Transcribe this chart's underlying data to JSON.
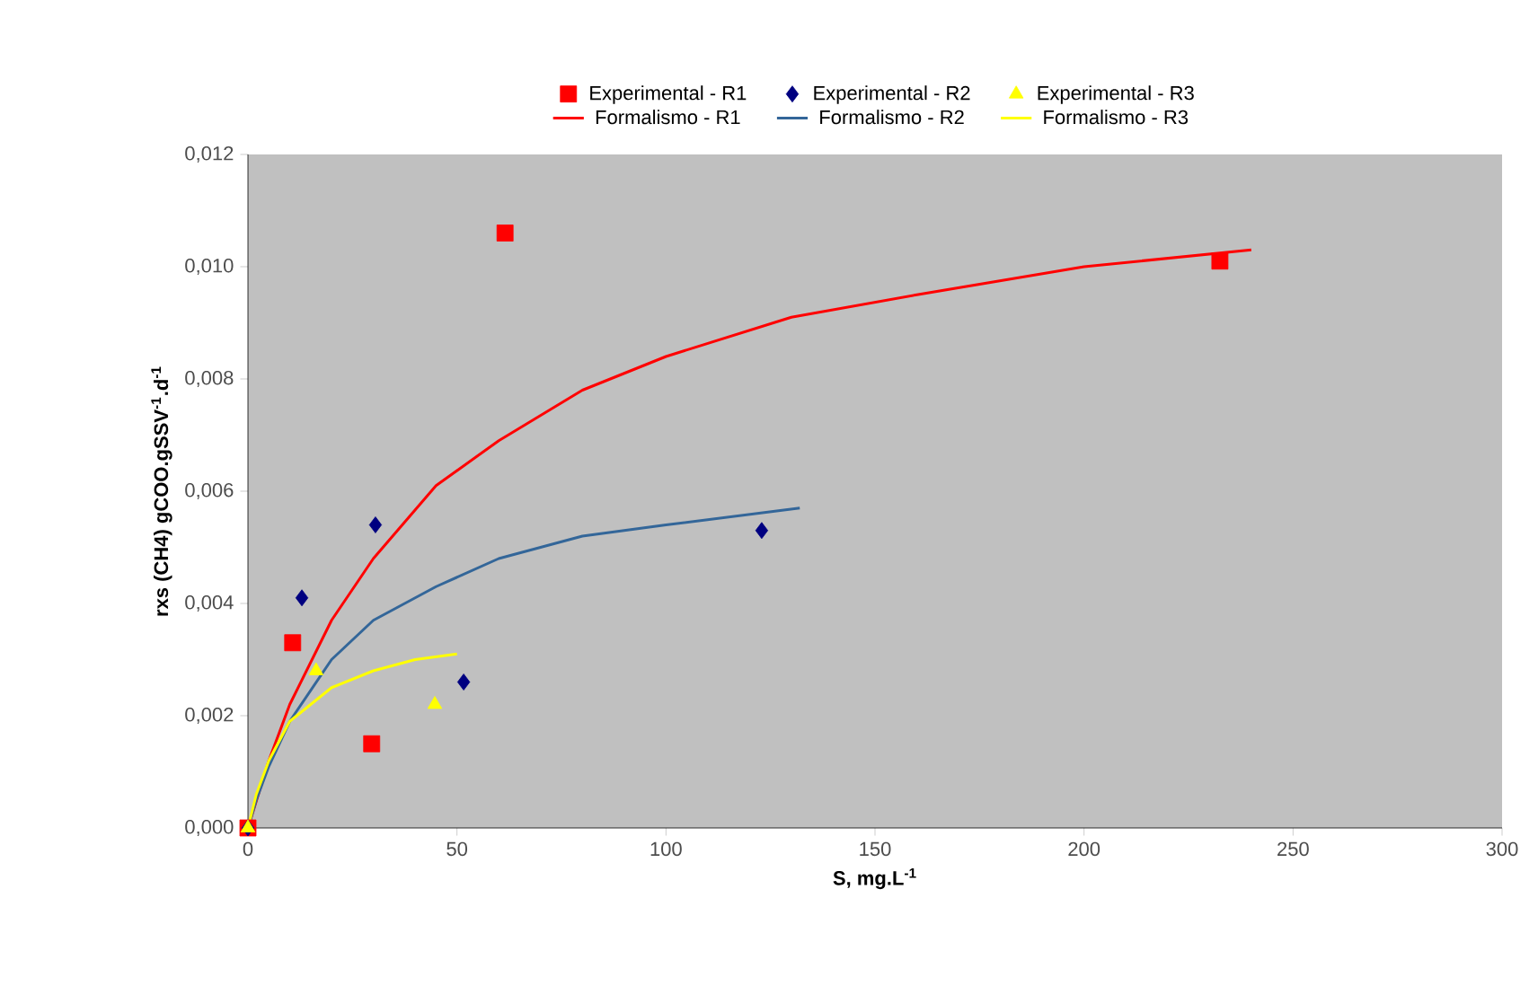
{
  "chart_data": {
    "type": "scatter",
    "xlabel": "S, mg.L$^{-1}$",
    "ylabel": "rxs (CH4) gCOO.gSSV$^{-1}$.d$^{-1}$",
    "xlim": [
      0,
      300
    ],
    "xticks": [
      0,
      50,
      100,
      150,
      200,
      250,
      300
    ],
    "ylim": [
      0,
      0.012
    ],
    "yticks": [
      {
        "value": 0,
        "label": "0,000"
      },
      {
        "value": 0.002,
        "label": "0,002"
      },
      {
        "value": 0.004,
        "label": "0,004"
      },
      {
        "value": 0.006,
        "label": "0,006"
      },
      {
        "value": 0.008,
        "label": "0,008"
      },
      {
        "value": 0.01,
        "label": "0,010"
      },
      {
        "value": 0.012,
        "label": "0,012"
      }
    ],
    "grid": false,
    "legend": "top",
    "series": [
      {
        "name": "Experimental - R1",
        "type": "scatter",
        "marker": "square",
        "color": "#ff0000",
        "x": [
          0,
          10.7,
          29.6,
          61.5,
          232.5
        ],
        "values": [
          0,
          0.0033,
          0.0015,
          0.0106,
          0.0101
        ]
      },
      {
        "name": "Experimental - R2",
        "type": "scatter",
        "marker": "diamond",
        "color": "#000080",
        "x": [
          0,
          12.9,
          30.5,
          51.6,
          122.9
        ],
        "values": [
          0,
          0.0041,
          0.0054,
          0.0026,
          0.0053
        ]
      },
      {
        "name": "Experimental - R3",
        "type": "scatter",
        "marker": "triangle",
        "color": "#ffff00",
        "x": [
          0,
          16.3,
          44.7
        ],
        "values": [
          0,
          0.0028,
          0.0022
        ]
      },
      {
        "name": "Formalismo - R1",
        "type": "line",
        "marker": "none",
        "color": "#ff0000",
        "x": [
          0,
          5,
          10,
          20,
          30,
          45,
          60,
          80,
          100,
          130,
          160,
          200,
          240
        ],
        "values": [
          0,
          0.0012,
          0.0022,
          0.0037,
          0.0048,
          0.0061,
          0.0069,
          0.0078,
          0.0084,
          0.0091,
          0.0095,
          0.01,
          0.0103
        ]
      },
      {
        "name": "Formalismo - R2",
        "type": "line",
        "marker": "none",
        "color": "#336699",
        "x": [
          0,
          2,
          5,
          10,
          20,
          30,
          45,
          60,
          80,
          100,
          132
        ],
        "values": [
          0,
          0.0005,
          0.0011,
          0.0019,
          0.003,
          0.0037,
          0.0043,
          0.0048,
          0.0052,
          0.0054,
          0.0057
        ]
      },
      {
        "name": "Formalismo - R3",
        "type": "line",
        "marker": "none",
        "color": "#ffff00",
        "x": [
          0,
          2,
          5,
          10,
          20,
          30,
          40,
          50
        ],
        "values": [
          0,
          0.0006,
          0.0012,
          0.0019,
          0.0025,
          0.0028,
          0.003,
          0.0031
        ]
      }
    ]
  }
}
